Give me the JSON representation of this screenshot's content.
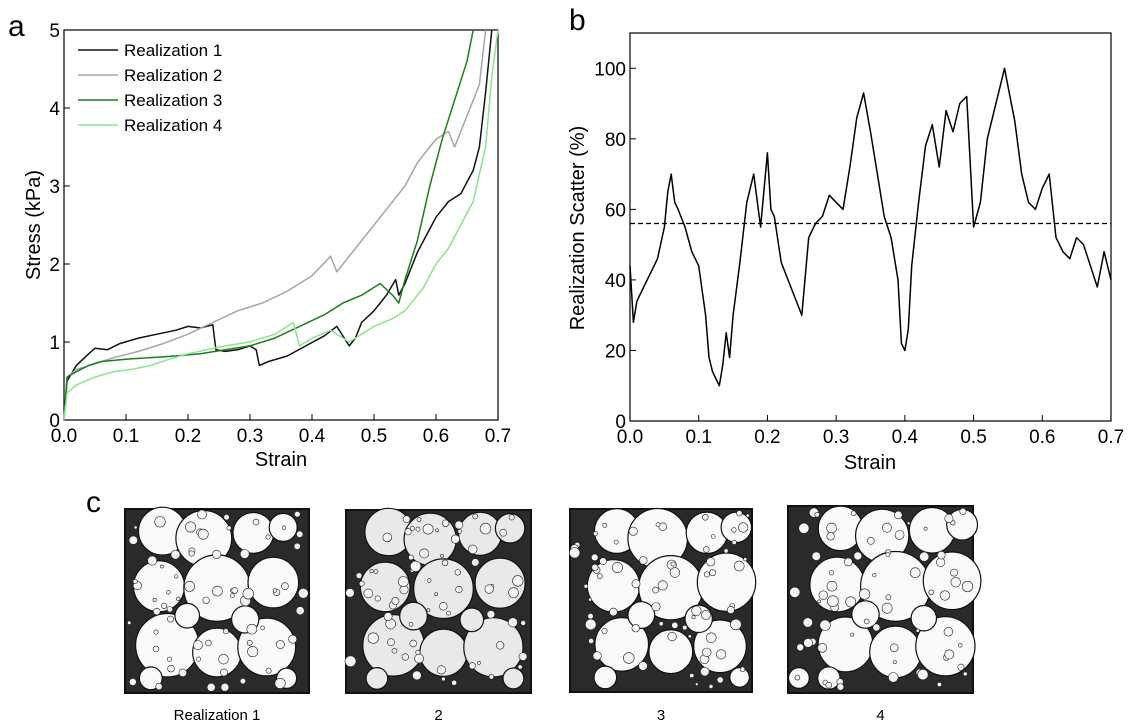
{
  "panels": {
    "a": {
      "letter": "a"
    },
    "b": {
      "letter": "b"
    },
    "c": {
      "letter": "c"
    }
  },
  "chart_data": [
    {
      "type": "line",
      "panel": "a",
      "xlabel": "Strain",
      "ylabel": "Stress (kPa)",
      "xlim": [
        0,
        0.7
      ],
      "ylim": [
        0,
        5
      ],
      "xticks": [
        "0.0",
        "0.1",
        "0.2",
        "0.3",
        "0.4",
        "0.5",
        "0.6",
        "0.7"
      ],
      "yticks": [
        "0",
        "1",
        "2",
        "3",
        "4",
        "5"
      ],
      "grid": false,
      "legend": "top-left",
      "series": [
        {
          "name": "Realization 1",
          "color": "#111111",
          "x": [
            0,
            0.005,
            0.02,
            0.04,
            0.05,
            0.07,
            0.09,
            0.12,
            0.15,
            0.18,
            0.2,
            0.22,
            0.24,
            0.245,
            0.26,
            0.28,
            0.3,
            0.31,
            0.315,
            0.33,
            0.36,
            0.39,
            0.42,
            0.44,
            0.46,
            0.47,
            0.48,
            0.5,
            0.52,
            0.535,
            0.54,
            0.55,
            0.57,
            0.59,
            0.6,
            0.62,
            0.64,
            0.66,
            0.67,
            0.68,
            0.69
          ],
          "y": [
            0,
            0.5,
            0.7,
            0.85,
            0.92,
            0.9,
            0.98,
            1.05,
            1.1,
            1.15,
            1.2,
            1.18,
            1.22,
            0.9,
            0.88,
            0.9,
            0.95,
            0.9,
            0.7,
            0.75,
            0.82,
            0.95,
            1.08,
            1.2,
            0.95,
            1.05,
            1.25,
            1.4,
            1.6,
            1.8,
            1.6,
            1.75,
            2.15,
            2.45,
            2.6,
            2.8,
            2.9,
            3.2,
            3.5,
            4.2,
            5.0
          ]
        },
        {
          "name": "Realization 2",
          "color": "#a6a6a6",
          "x": [
            0,
            0.005,
            0.02,
            0.05,
            0.08,
            0.12,
            0.16,
            0.2,
            0.24,
            0.28,
            0.32,
            0.36,
            0.4,
            0.43,
            0.44,
            0.45,
            0.47,
            0.5,
            0.53,
            0.55,
            0.57,
            0.59,
            0.6,
            0.62,
            0.63,
            0.65,
            0.67,
            0.68
          ],
          "y": [
            0,
            0.55,
            0.65,
            0.72,
            0.8,
            0.88,
            0.98,
            1.1,
            1.25,
            1.4,
            1.5,
            1.65,
            1.85,
            2.1,
            1.9,
            2.0,
            2.2,
            2.5,
            2.8,
            3.0,
            3.3,
            3.5,
            3.6,
            3.7,
            3.5,
            3.9,
            4.3,
            5.0
          ]
        },
        {
          "name": "Realization 3",
          "color": "#1e7d1e",
          "x": [
            0,
            0.005,
            0.02,
            0.04,
            0.06,
            0.1,
            0.14,
            0.18,
            0.22,
            0.26,
            0.3,
            0.34,
            0.38,
            0.42,
            0.45,
            0.48,
            0.51,
            0.53,
            0.54,
            0.55,
            0.57,
            0.59,
            0.61,
            0.63,
            0.65,
            0.66
          ],
          "y": [
            0,
            0.55,
            0.62,
            0.7,
            0.75,
            0.78,
            0.8,
            0.82,
            0.85,
            0.9,
            0.95,
            1.05,
            1.2,
            1.35,
            1.5,
            1.6,
            1.75,
            1.6,
            1.5,
            1.8,
            2.3,
            3.0,
            3.6,
            4.1,
            4.6,
            5.0
          ]
        },
        {
          "name": "Realization 4",
          "color": "#8ee38e",
          "x": [
            0,
            0.005,
            0.02,
            0.05,
            0.08,
            0.11,
            0.14,
            0.17,
            0.2,
            0.23,
            0.26,
            0.3,
            0.34,
            0.37,
            0.38,
            0.4,
            0.43,
            0.46,
            0.5,
            0.53,
            0.55,
            0.58,
            0.6,
            0.62,
            0.64,
            0.66,
            0.68,
            0.69,
            0.7
          ],
          "y": [
            0,
            0.35,
            0.45,
            0.55,
            0.62,
            0.65,
            0.7,
            0.78,
            0.85,
            0.9,
            0.95,
            1.0,
            1.1,
            1.25,
            0.95,
            1.05,
            1.15,
            1.0,
            1.2,
            1.3,
            1.4,
            1.7,
            2.0,
            2.2,
            2.5,
            2.8,
            3.5,
            4.4,
            5.0
          ]
        }
      ]
    },
    {
      "type": "line",
      "panel": "b",
      "xlabel": "Strain",
      "ylabel": "Realization Scatter (%)",
      "xlim": [
        0,
        0.7
      ],
      "ylim": [
        0,
        110
      ],
      "xticks": [
        "0.0",
        "0.1",
        "0.2",
        "0.3",
        "0.4",
        "0.5",
        "0.6",
        "0.7"
      ],
      "yticks": [
        "0",
        "20",
        "40",
        "60",
        "80",
        "100"
      ],
      "grid": false,
      "reference_line_y": 56,
      "series": [
        {
          "color": "#000000",
          "x": [
            0,
            0.005,
            0.01,
            0.02,
            0.03,
            0.04,
            0.05,
            0.055,
            0.06,
            0.065,
            0.07,
            0.08,
            0.09,
            0.1,
            0.11,
            0.115,
            0.12,
            0.125,
            0.13,
            0.135,
            0.14,
            0.145,
            0.15,
            0.16,
            0.17,
            0.18,
            0.19,
            0.2,
            0.205,
            0.21,
            0.22,
            0.23,
            0.24,
            0.25,
            0.26,
            0.27,
            0.28,
            0.29,
            0.3,
            0.31,
            0.32,
            0.33,
            0.34,
            0.35,
            0.36,
            0.37,
            0.38,
            0.39,
            0.395,
            0.4,
            0.405,
            0.41,
            0.42,
            0.43,
            0.44,
            0.45,
            0.46,
            0.47,
            0.48,
            0.49,
            0.5,
            0.51,
            0.52,
            0.53,
            0.54,
            0.545,
            0.55,
            0.56,
            0.57,
            0.58,
            0.59,
            0.6,
            0.61,
            0.62,
            0.63,
            0.64,
            0.65,
            0.66,
            0.67,
            0.68,
            0.69,
            0.7
          ],
          "y": [
            44,
            28,
            34,
            38,
            42,
            46,
            55,
            65,
            70,
            62,
            60,
            55,
            48,
            44,
            30,
            18,
            14,
            12,
            10,
            16,
            25,
            18,
            30,
            45,
            62,
            70,
            55,
            76,
            60,
            58,
            45,
            40,
            35,
            30,
            52,
            56,
            58,
            64,
            62,
            60,
            72,
            86,
            93,
            82,
            70,
            58,
            52,
            40,
            22,
            20,
            26,
            44,
            62,
            78,
            84,
            72,
            88,
            82,
            90,
            92,
            55,
            62,
            80,
            88,
            96,
            100,
            95,
            85,
            70,
            62,
            60,
            66,
            70,
            52,
            48,
            46,
            52,
            50,
            44,
            38,
            48,
            40
          ]
        }
      ]
    }
  ],
  "images_row": {
    "captions": [
      "Realization 1",
      "2",
      "3",
      "4"
    ]
  }
}
